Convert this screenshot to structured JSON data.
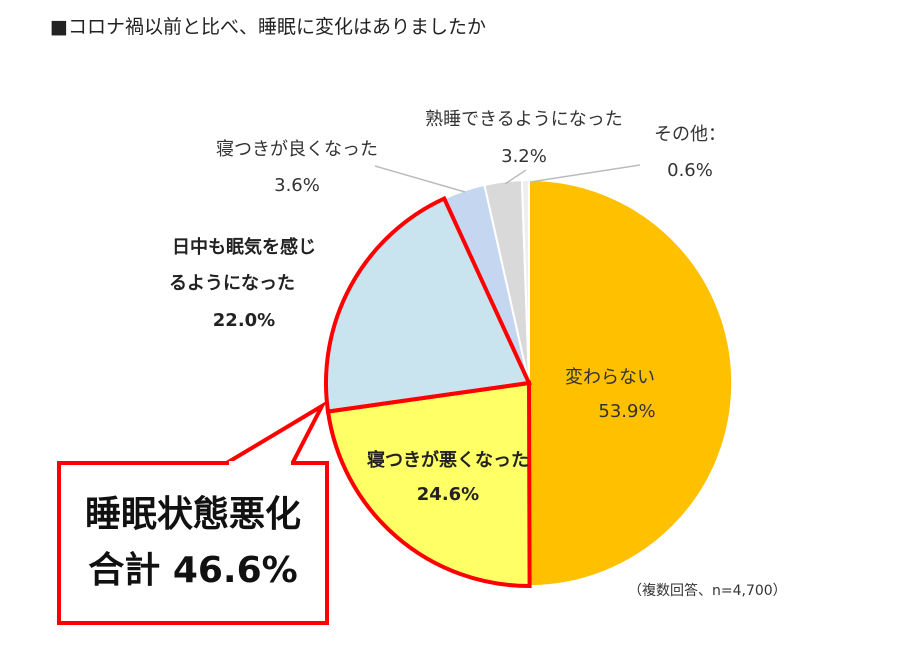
{
  "title": "■コロナ禍以前と比べ、睡眠に変化はありましたか",
  "note": "（複数回答、n=4,700）",
  "callout": {
    "line1": "睡眠状態悪化",
    "line2": "合計 46.6%"
  },
  "colors": {
    "highlight_border": "#ff0000",
    "leader_line": "#bbbbbb"
  },
  "chart_data": {
    "type": "pie",
    "slices": [
      {
        "label": "変わらない",
        "value": 53.9,
        "value_label": "53.9%",
        "color": "#ffc000",
        "bold": false
      },
      {
        "label": "寝つきが悪くなった",
        "value": 24.6,
        "value_label": "24.6%",
        "color": "#ffff66",
        "bold": true,
        "highlighted": true
      },
      {
        "label": "日中も眠気を感じるようになった",
        "value": 22.0,
        "value_label": "22.0%",
        "color": "#c9e4ee",
        "bold": true,
        "highlighted": true
      },
      {
        "label": "寝つきが良くなった",
        "value": 3.6,
        "value_label": "3.6%",
        "color": "#c5d7f0",
        "bold": false
      },
      {
        "label": "熟睡できるようになった",
        "value": 3.2,
        "value_label": "3.2%",
        "color": "#d9d9d9",
        "bold": false
      },
      {
        "label": "その他：",
        "value": 0.6,
        "value_label": "0.6%",
        "color": "#eeeeee",
        "bold": false
      }
    ]
  }
}
